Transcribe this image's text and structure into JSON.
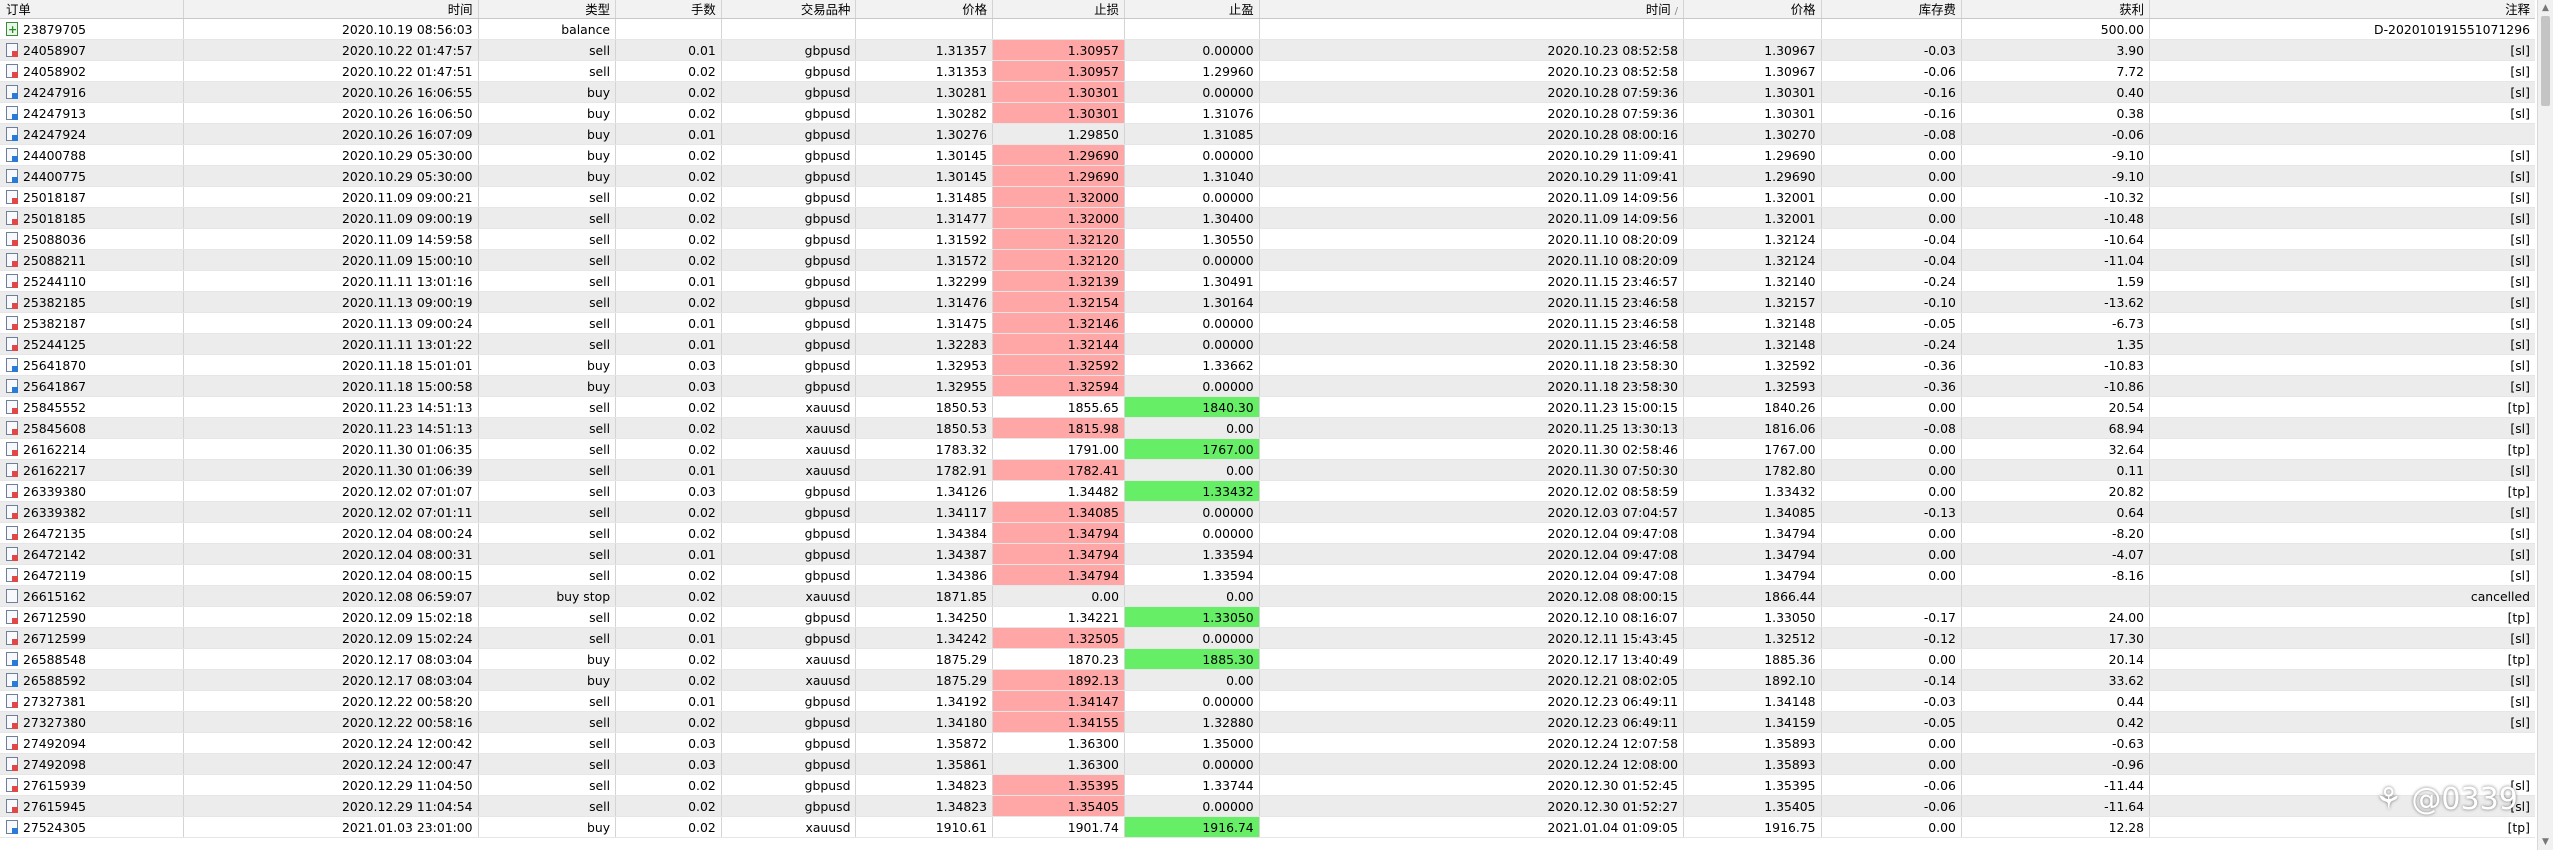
{
  "header": [
    "订单",
    "时间",
    "类型",
    "手数",
    "交易品种",
    "价格",
    "止损",
    "止盈",
    "时间",
    "价格",
    "库存费",
    "获利",
    "注释"
  ],
  "header_sort_mark": "/",
  "colors": {
    "sl_hit": "#ffa7a7",
    "tp_hit": "#66ee66",
    "row_alt": "#ececec"
  },
  "rows": [
    {
      "icon": "balance-icon",
      "order": "23879705",
      "open_time": "2020.10.19 08:56:03",
      "type": "balance",
      "lots": "",
      "symbol": "",
      "open_price": "",
      "sl": "",
      "tp": "",
      "close_time": "",
      "close_price": "",
      "swap": "",
      "profit": "500.00",
      "comment": "D-202010191551071296",
      "hl": ""
    },
    {
      "icon": "sell-order-icon",
      "order": "24058907",
      "open_time": "2020.10.22 01:47:57",
      "type": "sell",
      "lots": "0.01",
      "symbol": "gbpusd",
      "open_price": "1.31357",
      "sl": "1.30957",
      "tp": "0.00000",
      "close_time": "2020.10.23 08:52:58",
      "close_price": "1.30967",
      "swap": "-0.03",
      "profit": "3.90",
      "comment": "[sl]",
      "hl": "sl"
    },
    {
      "icon": "sell-order-icon",
      "order": "24058902",
      "open_time": "2020.10.22 01:47:51",
      "type": "sell",
      "lots": "0.02",
      "symbol": "gbpusd",
      "open_price": "1.31353",
      "sl": "1.30957",
      "tp": "1.29960",
      "close_time": "2020.10.23 08:52:58",
      "close_price": "1.30967",
      "swap": "-0.06",
      "profit": "7.72",
      "comment": "[sl]",
      "hl": "sl"
    },
    {
      "icon": "buy-order-icon",
      "order": "24247916",
      "open_time": "2020.10.26 16:06:55",
      "type": "buy",
      "lots": "0.02",
      "symbol": "gbpusd",
      "open_price": "1.30281",
      "sl": "1.30301",
      "tp": "0.00000",
      "close_time": "2020.10.28 07:59:36",
      "close_price": "1.30301",
      "swap": "-0.16",
      "profit": "0.40",
      "comment": "[sl]",
      "hl": "sl"
    },
    {
      "icon": "buy-order-icon",
      "order": "24247913",
      "open_time": "2020.10.26 16:06:50",
      "type": "buy",
      "lots": "0.02",
      "symbol": "gbpusd",
      "open_price": "1.30282",
      "sl": "1.30301",
      "tp": "1.31076",
      "close_time": "2020.10.28 07:59:36",
      "close_price": "1.30301",
      "swap": "-0.16",
      "profit": "0.38",
      "comment": "[sl]",
      "hl": "sl"
    },
    {
      "icon": "buy-order-icon",
      "order": "24247924",
      "open_time": "2020.10.26 16:07:09",
      "type": "buy",
      "lots": "0.01",
      "symbol": "gbpusd",
      "open_price": "1.30276",
      "sl": "1.29850",
      "tp": "1.31085",
      "close_time": "2020.10.28 08:00:16",
      "close_price": "1.30270",
      "swap": "-0.08",
      "profit": "-0.06",
      "comment": "",
      "hl": ""
    },
    {
      "icon": "buy-order-icon",
      "order": "24400788",
      "open_time": "2020.10.29 05:30:00",
      "type": "buy",
      "lots": "0.02",
      "symbol": "gbpusd",
      "open_price": "1.30145",
      "sl": "1.29690",
      "tp": "0.00000",
      "close_time": "2020.10.29 11:09:41",
      "close_price": "1.29690",
      "swap": "0.00",
      "profit": "-9.10",
      "comment": "[sl]",
      "hl": "sl"
    },
    {
      "icon": "buy-order-icon",
      "order": "24400775",
      "open_time": "2020.10.29 05:30:00",
      "type": "buy",
      "lots": "0.02",
      "symbol": "gbpusd",
      "open_price": "1.30145",
      "sl": "1.29690",
      "tp": "1.31040",
      "close_time": "2020.10.29 11:09:41",
      "close_price": "1.29690",
      "swap": "0.00",
      "profit": "-9.10",
      "comment": "[sl]",
      "hl": "sl"
    },
    {
      "icon": "sell-order-icon",
      "order": "25018187",
      "open_time": "2020.11.09 09:00:21",
      "type": "sell",
      "lots": "0.02",
      "symbol": "gbpusd",
      "open_price": "1.31485",
      "sl": "1.32000",
      "tp": "0.00000",
      "close_time": "2020.11.09 14:09:56",
      "close_price": "1.32001",
      "swap": "0.00",
      "profit": "-10.32",
      "comment": "[sl]",
      "hl": "sl"
    },
    {
      "icon": "sell-order-icon",
      "order": "25018185",
      "open_time": "2020.11.09 09:00:19",
      "type": "sell",
      "lots": "0.02",
      "symbol": "gbpusd",
      "open_price": "1.31477",
      "sl": "1.32000",
      "tp": "1.30400",
      "close_time": "2020.11.09 14:09:56",
      "close_price": "1.32001",
      "swap": "0.00",
      "profit": "-10.48",
      "comment": "[sl]",
      "hl": "sl"
    },
    {
      "icon": "sell-order-icon",
      "order": "25088036",
      "open_time": "2020.11.09 14:59:58",
      "type": "sell",
      "lots": "0.02",
      "symbol": "gbpusd",
      "open_price": "1.31592",
      "sl": "1.32120",
      "tp": "1.30550",
      "close_time": "2020.11.10 08:20:09",
      "close_price": "1.32124",
      "swap": "-0.04",
      "profit": "-10.64",
      "comment": "[sl]",
      "hl": "sl"
    },
    {
      "icon": "sell-order-icon",
      "order": "25088211",
      "open_time": "2020.11.09 15:00:10",
      "type": "sell",
      "lots": "0.02",
      "symbol": "gbpusd",
      "open_price": "1.31572",
      "sl": "1.32120",
      "tp": "0.00000",
      "close_time": "2020.11.10 08:20:09",
      "close_price": "1.32124",
      "swap": "-0.04",
      "profit": "-11.04",
      "comment": "[sl]",
      "hl": "sl"
    },
    {
      "icon": "sell-order-icon",
      "order": "25244110",
      "open_time": "2020.11.11 13:01:16",
      "type": "sell",
      "lots": "0.01",
      "symbol": "gbpusd",
      "open_price": "1.32299",
      "sl": "1.32139",
      "tp": "1.30491",
      "close_time": "2020.11.15 23:46:57",
      "close_price": "1.32140",
      "swap": "-0.24",
      "profit": "1.59",
      "comment": "[sl]",
      "hl": "sl"
    },
    {
      "icon": "sell-order-icon",
      "order": "25382185",
      "open_time": "2020.11.13 09:00:19",
      "type": "sell",
      "lots": "0.02",
      "symbol": "gbpusd",
      "open_price": "1.31476",
      "sl": "1.32154",
      "tp": "1.30164",
      "close_time": "2020.11.15 23:46:58",
      "close_price": "1.32157",
      "swap": "-0.10",
      "profit": "-13.62",
      "comment": "[sl]",
      "hl": "sl"
    },
    {
      "icon": "sell-order-icon",
      "order": "25382187",
      "open_time": "2020.11.13 09:00:24",
      "type": "sell",
      "lots": "0.01",
      "symbol": "gbpusd",
      "open_price": "1.31475",
      "sl": "1.32146",
      "tp": "0.00000",
      "close_time": "2020.11.15 23:46:58",
      "close_price": "1.32148",
      "swap": "-0.05",
      "profit": "-6.73",
      "comment": "[sl]",
      "hl": "sl"
    },
    {
      "icon": "sell-order-icon",
      "order": "25244125",
      "open_time": "2020.11.11 13:01:22",
      "type": "sell",
      "lots": "0.01",
      "symbol": "gbpusd",
      "open_price": "1.32283",
      "sl": "1.32144",
      "tp": "0.00000",
      "close_time": "2020.11.15 23:46:58",
      "close_price": "1.32148",
      "swap": "-0.24",
      "profit": "1.35",
      "comment": "[sl]",
      "hl": "sl"
    },
    {
      "icon": "buy-order-icon",
      "order": "25641870",
      "open_time": "2020.11.18 15:01:01",
      "type": "buy",
      "lots": "0.03",
      "symbol": "gbpusd",
      "open_price": "1.32953",
      "sl": "1.32592",
      "tp": "1.33662",
      "close_time": "2020.11.18 23:58:30",
      "close_price": "1.32592",
      "swap": "-0.36",
      "profit": "-10.83",
      "comment": "[sl]",
      "hl": "sl"
    },
    {
      "icon": "buy-order-icon",
      "order": "25641867",
      "open_time": "2020.11.18 15:00:58",
      "type": "buy",
      "lots": "0.03",
      "symbol": "gbpusd",
      "open_price": "1.32955",
      "sl": "1.32594",
      "tp": "0.00000",
      "close_time": "2020.11.18 23:58:30",
      "close_price": "1.32593",
      "swap": "-0.36",
      "profit": "-10.86",
      "comment": "[sl]",
      "hl": "sl"
    },
    {
      "icon": "sell-order-icon",
      "order": "25845552",
      "open_time": "2020.11.23 14:51:13",
      "type": "sell",
      "lots": "0.02",
      "symbol": "xauusd",
      "open_price": "1850.53",
      "sl": "1855.65",
      "tp": "1840.30",
      "close_time": "2020.11.23 15:00:15",
      "close_price": "1840.26",
      "swap": "0.00",
      "profit": "20.54",
      "comment": "[tp]",
      "hl": "tp"
    },
    {
      "icon": "sell-order-icon",
      "order": "25845608",
      "open_time": "2020.11.23 14:51:13",
      "type": "sell",
      "lots": "0.02",
      "symbol": "xauusd",
      "open_price": "1850.53",
      "sl": "1815.98",
      "tp": "0.00",
      "close_time": "2020.11.25 13:30:13",
      "close_price": "1816.06",
      "swap": "-0.08",
      "profit": "68.94",
      "comment": "[sl]",
      "hl": "sl"
    },
    {
      "icon": "sell-order-icon",
      "order": "26162214",
      "open_time": "2020.11.30 01:06:35",
      "type": "sell",
      "lots": "0.02",
      "symbol": "xauusd",
      "open_price": "1783.32",
      "sl": "1791.00",
      "tp": "1767.00",
      "close_time": "2020.11.30 02:58:46",
      "close_price": "1767.00",
      "swap": "0.00",
      "profit": "32.64",
      "comment": "[tp]",
      "hl": "tp"
    },
    {
      "icon": "sell-order-icon",
      "order": "26162217",
      "open_time": "2020.11.30 01:06:39",
      "type": "sell",
      "lots": "0.01",
      "symbol": "xauusd",
      "open_price": "1782.91",
      "sl": "1782.41",
      "tp": "0.00",
      "close_time": "2020.11.30 07:50:30",
      "close_price": "1782.80",
      "swap": "0.00",
      "profit": "0.11",
      "comment": "[sl]",
      "hl": "sl"
    },
    {
      "icon": "sell-order-icon",
      "order": "26339380",
      "open_time": "2020.12.02 07:01:07",
      "type": "sell",
      "lots": "0.03",
      "symbol": "gbpusd",
      "open_price": "1.34126",
      "sl": "1.34482",
      "tp": "1.33432",
      "close_time": "2020.12.02 08:58:59",
      "close_price": "1.33432",
      "swap": "0.00",
      "profit": "20.82",
      "comment": "[tp]",
      "hl": "tp"
    },
    {
      "icon": "sell-order-icon",
      "order": "26339382",
      "open_time": "2020.12.02 07:01:11",
      "type": "sell",
      "lots": "0.02",
      "symbol": "gbpusd",
      "open_price": "1.34117",
      "sl": "1.34085",
      "tp": "0.00000",
      "close_time": "2020.12.03 07:04:57",
      "close_price": "1.34085",
      "swap": "-0.13",
      "profit": "0.64",
      "comment": "[sl]",
      "hl": "sl"
    },
    {
      "icon": "sell-order-icon",
      "order": "26472135",
      "open_time": "2020.12.04 08:00:24",
      "type": "sell",
      "lots": "0.02",
      "symbol": "gbpusd",
      "open_price": "1.34384",
      "sl": "1.34794",
      "tp": "0.00000",
      "close_time": "2020.12.04 09:47:08",
      "close_price": "1.34794",
      "swap": "0.00",
      "profit": "-8.20",
      "comment": "[sl]",
      "hl": "sl"
    },
    {
      "icon": "sell-order-icon",
      "order": "26472142",
      "open_time": "2020.12.04 08:00:31",
      "type": "sell",
      "lots": "0.01",
      "symbol": "gbpusd",
      "open_price": "1.34387",
      "sl": "1.34794",
      "tp": "1.33594",
      "close_time": "2020.12.04 09:47:08",
      "close_price": "1.34794",
      "swap": "0.00",
      "profit": "-4.07",
      "comment": "[sl]",
      "hl": "sl"
    },
    {
      "icon": "sell-order-icon",
      "order": "26472119",
      "open_time": "2020.12.04 08:00:15",
      "type": "sell",
      "lots": "0.02",
      "symbol": "gbpusd",
      "open_price": "1.34386",
      "sl": "1.34794",
      "tp": "1.33594",
      "close_time": "2020.12.04 09:47:08",
      "close_price": "1.34794",
      "swap": "0.00",
      "profit": "-8.16",
      "comment": "[sl]",
      "hl": "sl"
    },
    {
      "icon": "pending-order-icon",
      "order": "26615162",
      "open_time": "2020.12.08 06:59:07",
      "type": "buy stop",
      "lots": "0.02",
      "symbol": "xauusd",
      "open_price": "1871.85",
      "sl": "0.00",
      "tp": "0.00",
      "close_time": "2020.12.08 08:00:15",
      "close_price": "1866.44",
      "swap": "",
      "profit": "",
      "comment": "cancelled",
      "hl": ""
    },
    {
      "icon": "sell-order-icon",
      "order": "26712590",
      "open_time": "2020.12.09 15:02:18",
      "type": "sell",
      "lots": "0.02",
      "symbol": "gbpusd",
      "open_price": "1.34250",
      "sl": "1.34221",
      "tp": "1.33050",
      "close_time": "2020.12.10 08:16:07",
      "close_price": "1.33050",
      "swap": "-0.17",
      "profit": "24.00",
      "comment": "[tp]",
      "hl": "tp"
    },
    {
      "icon": "sell-order-icon",
      "order": "26712599",
      "open_time": "2020.12.09 15:02:24",
      "type": "sell",
      "lots": "0.01",
      "symbol": "gbpusd",
      "open_price": "1.34242",
      "sl": "1.32505",
      "tp": "0.00000",
      "close_time": "2020.12.11 15:43:45",
      "close_price": "1.32512",
      "swap": "-0.12",
      "profit": "17.30",
      "comment": "[sl]",
      "hl": "sl"
    },
    {
      "icon": "buy-order-icon",
      "order": "26588548",
      "open_time": "2020.12.17 08:03:04",
      "type": "buy",
      "lots": "0.02",
      "symbol": "xauusd",
      "open_price": "1875.29",
      "sl": "1870.23",
      "tp": "1885.30",
      "close_time": "2020.12.17 13:40:49",
      "close_price": "1885.36",
      "swap": "0.00",
      "profit": "20.14",
      "comment": "[tp]",
      "hl": "tp"
    },
    {
      "icon": "buy-order-icon",
      "order": "26588592",
      "open_time": "2020.12.17 08:03:04",
      "type": "buy",
      "lots": "0.02",
      "symbol": "xauusd",
      "open_price": "1875.29",
      "sl": "1892.13",
      "tp": "0.00",
      "close_time": "2020.12.21 08:02:05",
      "close_price": "1892.10",
      "swap": "-0.14",
      "profit": "33.62",
      "comment": "[sl]",
      "hl": "sl"
    },
    {
      "icon": "sell-order-icon",
      "order": "27327381",
      "open_time": "2020.12.22 00:58:20",
      "type": "sell",
      "lots": "0.01",
      "symbol": "gbpusd",
      "open_price": "1.34192",
      "sl": "1.34147",
      "tp": "0.00000",
      "close_time": "2020.12.23 06:49:11",
      "close_price": "1.34148",
      "swap": "-0.03",
      "profit": "0.44",
      "comment": "[sl]",
      "hl": "sl"
    },
    {
      "icon": "sell-order-icon",
      "order": "27327380",
      "open_time": "2020.12.22 00:58:16",
      "type": "sell",
      "lots": "0.02",
      "symbol": "gbpusd",
      "open_price": "1.34180",
      "sl": "1.34155",
      "tp": "1.32880",
      "close_time": "2020.12.23 06:49:11",
      "close_price": "1.34159",
      "swap": "-0.05",
      "profit": "0.42",
      "comment": "[sl]",
      "hl": "sl"
    },
    {
      "icon": "sell-order-icon",
      "order": "27492094",
      "open_time": "2020.12.24 12:00:42",
      "type": "sell",
      "lots": "0.03",
      "symbol": "gbpusd",
      "open_price": "1.35872",
      "sl": "1.36300",
      "tp": "1.35000",
      "close_time": "2020.12.24 12:07:58",
      "close_price": "1.35893",
      "swap": "0.00",
      "profit": "-0.63",
      "comment": "",
      "hl": ""
    },
    {
      "icon": "sell-order-icon",
      "order": "27492098",
      "open_time": "2020.12.24 12:00:47",
      "type": "sell",
      "lots": "0.03",
      "symbol": "gbpusd",
      "open_price": "1.35861",
      "sl": "1.36300",
      "tp": "0.00000",
      "close_time": "2020.12.24 12:08:00",
      "close_price": "1.35893",
      "swap": "0.00",
      "profit": "-0.96",
      "comment": "",
      "hl": ""
    },
    {
      "icon": "sell-order-icon",
      "order": "27615939",
      "open_time": "2020.12.29 11:04:50",
      "type": "sell",
      "lots": "0.02",
      "symbol": "gbpusd",
      "open_price": "1.34823",
      "sl": "1.35395",
      "tp": "1.33744",
      "close_time": "2020.12.30 01:52:45",
      "close_price": "1.35395",
      "swap": "-0.06",
      "profit": "-11.44",
      "comment": "[sl]",
      "hl": "sl"
    },
    {
      "icon": "sell-order-icon",
      "order": "27615945",
      "open_time": "2020.12.29 11:04:54",
      "type": "sell",
      "lots": "0.02",
      "symbol": "gbpusd",
      "open_price": "1.34823",
      "sl": "1.35405",
      "tp": "0.00000",
      "close_time": "2020.12.30 01:52:27",
      "close_price": "1.35405",
      "swap": "-0.06",
      "profit": "-11.64",
      "comment": "[sl]",
      "hl": "sl"
    },
    {
      "icon": "buy-order-icon",
      "order": "27524305",
      "open_time": "2021.01.03 23:01:00",
      "type": "buy",
      "lots": "0.02",
      "symbol": "xauusd",
      "open_price": "1910.61",
      "sl": "1901.74",
      "tp": "1916.74",
      "close_time": "2021.01.04 01:09:05",
      "close_price": "1916.75",
      "swap": "0.00",
      "profit": "12.28",
      "comment": "[tp]",
      "hl": "tp"
    }
  ],
  "watermark": "⚘ @0339"
}
